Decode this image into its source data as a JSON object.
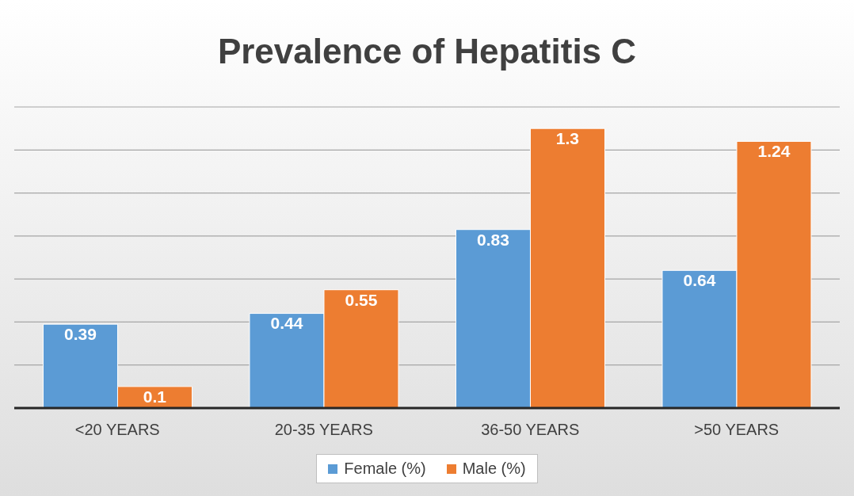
{
  "chart_data": {
    "type": "bar",
    "title": "Prevalence of Hepatitis C",
    "categories": [
      "<20 YEARS",
      "20-35 YEARS",
      "36-50 YEARS",
      ">50 YEARS"
    ],
    "series": [
      {
        "name": "Female (%)",
        "color": "#5b9bd5",
        "values": [
          0.39,
          0.44,
          0.83,
          0.64
        ]
      },
      {
        "name": "Male (%)",
        "color": "#ed7d31",
        "values": [
          0.1,
          0.55,
          1.3,
          1.24
        ]
      }
    ],
    "ylim": [
      0,
      1.4
    ],
    "yticks": [
      {
        "value": 0,
        "label": null
      },
      {
        "value": 0.2,
        "label": null
      },
      {
        "value": 0.4,
        "label": null
      },
      {
        "value": 0.6,
        "label": null
      },
      {
        "value": 0.8,
        "label": null
      },
      {
        "value": 1,
        "label": null
      },
      {
        "value": 1.2,
        "label": null
      },
      {
        "value": 1.4,
        "label": null
      }
    ],
    "tick_labels": "x",
    "grid": "y",
    "legend": "bottom",
    "data_labels": true
  }
}
